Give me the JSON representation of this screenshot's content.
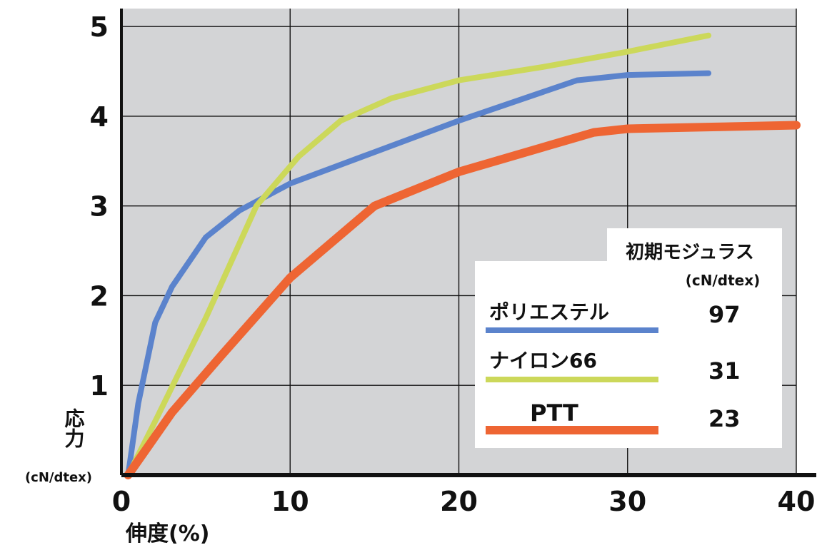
{
  "chart_data": {
    "type": "line",
    "xlabel": "伸度(%)",
    "ylabel": "応力",
    "ylabel_unit": "(cN/dtex)",
    "xlim": [
      0,
      40
    ],
    "ylim": [
      0,
      5.2
    ],
    "x_ticks": [
      0,
      10,
      20,
      30,
      40
    ],
    "y_ticks": [
      1,
      2,
      3,
      4,
      5
    ],
    "grid": true,
    "background": "#d3d4d6",
    "series": [
      {
        "name": "ポリエステル",
        "color": "#5b83cc",
        "modulus": "97",
        "points": [
          [
            0.4,
            0
          ],
          [
            1,
            0.8
          ],
          [
            2,
            1.7
          ],
          [
            3,
            2.1
          ],
          [
            5,
            2.65
          ],
          [
            7,
            2.95
          ],
          [
            10,
            3.25
          ],
          [
            15,
            3.6
          ],
          [
            20,
            3.95
          ],
          [
            27,
            4.4
          ],
          [
            30,
            4.46
          ],
          [
            34.8,
            4.48
          ]
        ]
      },
      {
        "name": "ナイロン66",
        "color": "#ccd85a",
        "modulus": "31",
        "points": [
          [
            0.4,
            0
          ],
          [
            2,
            0.6
          ],
          [
            5,
            1.75
          ],
          [
            8,
            3.0
          ],
          [
            10.5,
            3.55
          ],
          [
            13,
            3.95
          ],
          [
            16,
            4.2
          ],
          [
            20,
            4.4
          ],
          [
            25,
            4.55
          ],
          [
            30,
            4.72
          ],
          [
            34.8,
            4.9
          ]
        ]
      },
      {
        "name": "PTT",
        "color": "#ee6533",
        "modulus": "23",
        "points": [
          [
            0.4,
            0
          ],
          [
            3,
            0.7
          ],
          [
            6,
            1.35
          ],
          [
            10,
            2.2
          ],
          [
            15,
            3.0
          ],
          [
            20,
            3.38
          ],
          [
            28,
            3.82
          ],
          [
            30,
            3.86
          ],
          [
            35,
            3.88
          ],
          [
            40,
            3.9
          ]
        ]
      }
    ]
  },
  "legend": {
    "title": "初期モジュラス",
    "unit": "(cN/dtex)"
  }
}
